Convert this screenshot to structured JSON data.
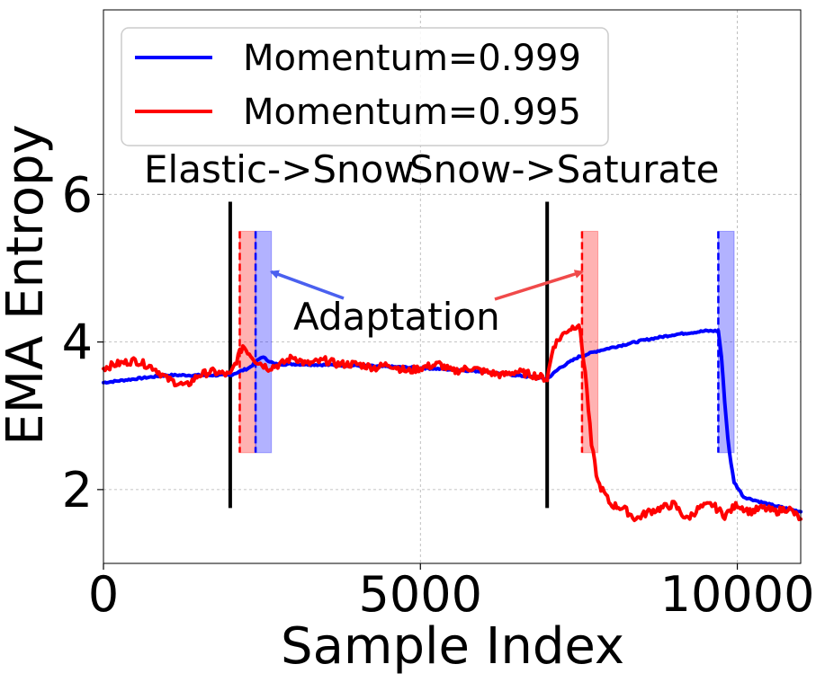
{
  "chart_data": {
    "type": "line",
    "title": "",
    "xlabel": "Sample Index",
    "ylabel": "EMA Entropy",
    "xlim": [
      0,
      11000
    ],
    "ylim": [
      1.0,
      8.5
    ],
    "xticks": [
      0,
      5000,
      10000
    ],
    "xtick_labels": [
      "0",
      "5000",
      "10000"
    ],
    "yticks": [
      2,
      4,
      6
    ],
    "ytick_labels": [
      "2",
      "4",
      "6"
    ],
    "grid": true,
    "legend_position": "top-left",
    "series": [
      {
        "name": "Momentum=0.999",
        "color": "#0000ff",
        "x": [
          0,
          500,
          1000,
          1500,
          2000,
          2300,
          2500,
          2700,
          3000,
          4000,
          5000,
          6000,
          6500,
          7000,
          7200,
          7500,
          7800,
          8000,
          8500,
          9000,
          9500,
          9700,
          9750,
          9800,
          9850,
          9900,
          9950,
          10100,
          10500,
          11000
        ],
        "y": [
          3.45,
          3.5,
          3.55,
          3.55,
          3.55,
          3.65,
          3.8,
          3.7,
          3.7,
          3.68,
          3.65,
          3.6,
          3.55,
          3.5,
          3.65,
          3.8,
          3.88,
          3.92,
          4.02,
          4.1,
          4.15,
          4.15,
          3.8,
          3.2,
          2.7,
          2.35,
          2.1,
          1.9,
          1.8,
          1.7
        ]
      },
      {
        "name": "Momentum=0.995",
        "color": "#ff0000",
        "x": [
          0,
          200,
          500,
          800,
          1000,
          1300,
          1500,
          1700,
          2000,
          2100,
          2200,
          2400,
          2600,
          2800,
          3000,
          3200,
          3500,
          3700,
          4000,
          4300,
          4500,
          4800,
          5000,
          5300,
          5500,
          5800,
          6000,
          6300,
          6500,
          6800,
          7000,
          7100,
          7300,
          7500,
          7600,
          7700,
          7800,
          8000,
          8200,
          8400,
          8600,
          8800,
          9000,
          9200,
          9400,
          9600,
          9800,
          10000,
          10200,
          10400,
          10600,
          10800,
          11000
        ],
        "y": [
          3.65,
          3.7,
          3.75,
          3.65,
          3.5,
          3.4,
          3.55,
          3.6,
          3.55,
          3.75,
          3.95,
          3.75,
          3.65,
          3.7,
          3.8,
          3.7,
          3.75,
          3.7,
          3.7,
          3.65,
          3.7,
          3.6,
          3.65,
          3.7,
          3.6,
          3.65,
          3.6,
          3.55,
          3.6,
          3.55,
          3.5,
          3.95,
          4.15,
          4.25,
          3.6,
          2.6,
          2.1,
          1.8,
          1.75,
          1.6,
          1.7,
          1.75,
          1.8,
          1.6,
          1.75,
          1.8,
          1.65,
          1.8,
          1.7,
          1.75,
          1.7,
          1.75,
          1.6
        ]
      }
    ],
    "shift_lines": [
      2000,
      7000
    ],
    "shift_labels": [
      "Elastic->Snow",
      "Snow->Saturate"
    ],
    "adaptation_bands": [
      {
        "series": "Momentum=0.995",
        "x_start": 2150,
        "x_end": 2400,
        "color": "#ff0000"
      },
      {
        "series": "Momentum=0.999",
        "x_start": 2400,
        "x_end": 2650,
        "color": "#0000ff"
      },
      {
        "series": "Momentum=0.995",
        "x_start": 7550,
        "x_end": 7800,
        "color": "#ff0000"
      },
      {
        "series": "Momentum=0.999",
        "x_start": 9700,
        "x_end": 9950,
        "color": "#0000ff"
      }
    ],
    "annotation": {
      "text": "Adaptation",
      "arrows": [
        {
          "color": "#4a60ef",
          "target_x": 2650,
          "target_y": 4.95
        },
        {
          "color": "#f04a4a",
          "target_x": 7550,
          "target_y": 4.95
        }
      ]
    }
  }
}
